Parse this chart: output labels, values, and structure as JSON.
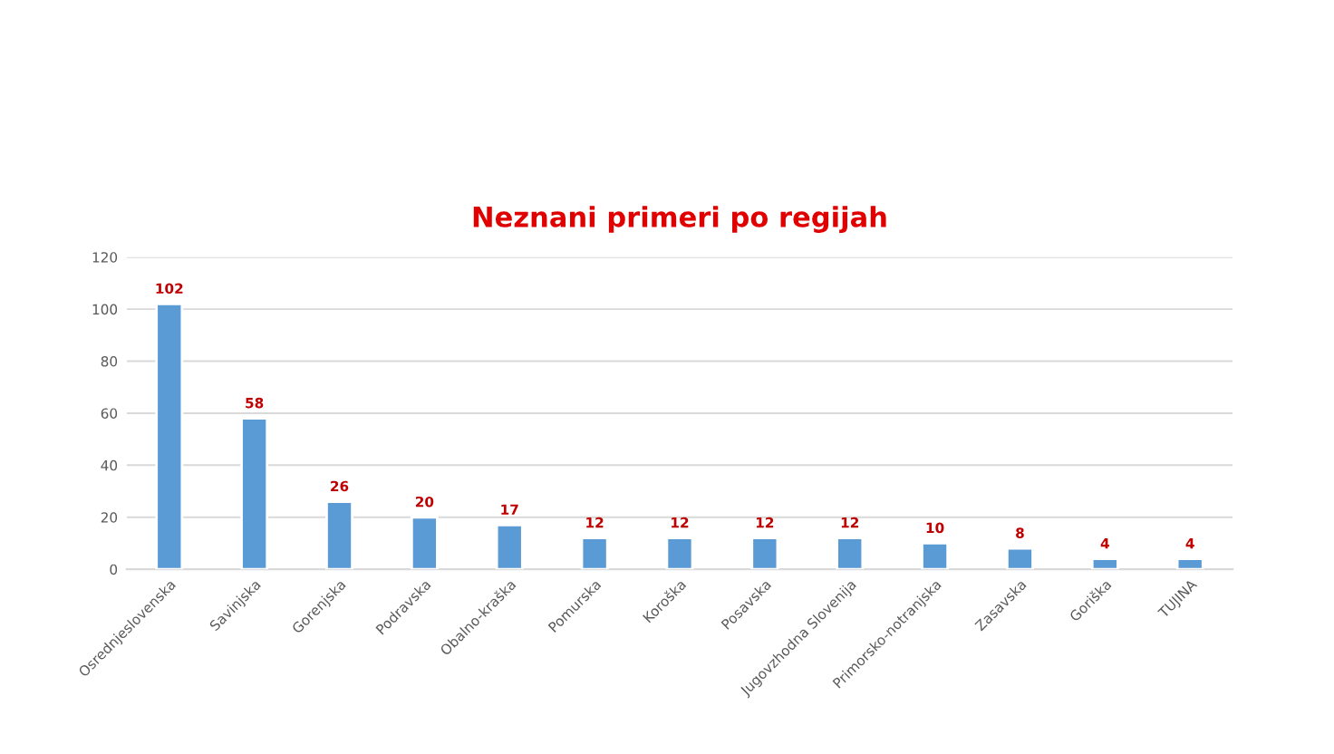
{
  "chart_data": {
    "type": "bar",
    "title": "Neznani primeri po regijah",
    "categories": [
      "Osrednjeslovenska",
      "Savinjska",
      "Gorenjska",
      "Podravska",
      "Obalno-kraška",
      "Pomurska",
      "Koroška",
      "Posavska",
      "Jugovzhodna Slovenija",
      "Primorsko-notranjska",
      "Zasavska",
      "Goriška",
      "TUJINA"
    ],
    "values": [
      102,
      58,
      26,
      20,
      17,
      12,
      12,
      12,
      12,
      10,
      8,
      4,
      4
    ],
    "color": "#5b9bd5",
    "ylim": [
      0,
      120
    ],
    "yticks": [
      0,
      20,
      40,
      60,
      80,
      100,
      120
    ],
    "grid": "y",
    "data_labels": true
  }
}
